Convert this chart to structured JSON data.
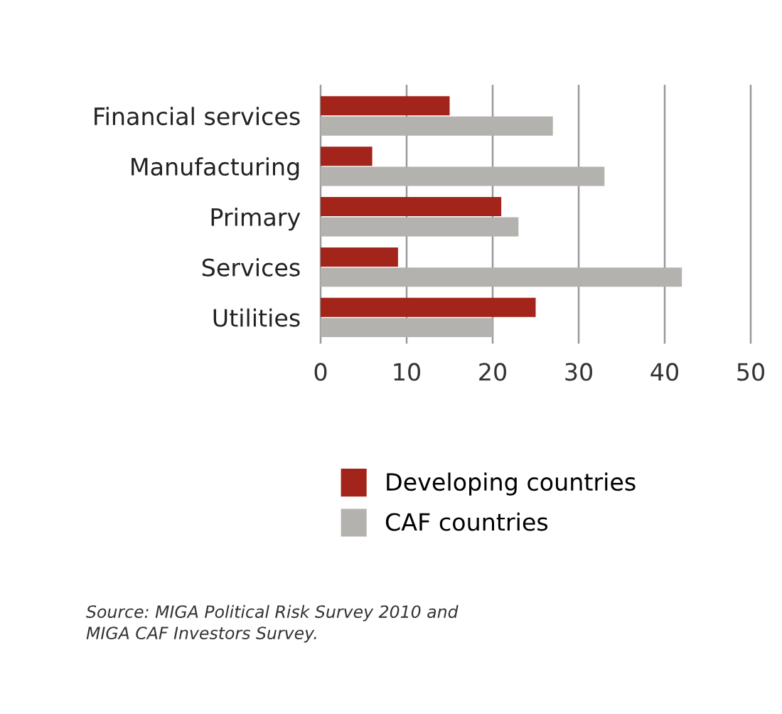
{
  "chart_data": {
    "type": "bar",
    "orientation": "horizontal",
    "categories": [
      "Financial services",
      "Manufacturing",
      "Primary",
      "Services",
      "Utilities"
    ],
    "series": [
      {
        "name": "Developing countries",
        "color": "#a3241a",
        "values": [
          15,
          6,
          21,
          9,
          25
        ]
      },
      {
        "name": "CAF countries",
        "color": "#b4b2ae",
        "values": [
          27,
          33,
          23,
          42,
          20
        ]
      }
    ],
    "xlim": [
      0,
      50
    ],
    "xticks": [
      0,
      10,
      20,
      30,
      40,
      50
    ],
    "grid": "x",
    "legend": "bottom",
    "annotations": [
      "Source: MIGA Political Risk Survey 2010 and\nMIGA CAF Investors Survey."
    ]
  }
}
